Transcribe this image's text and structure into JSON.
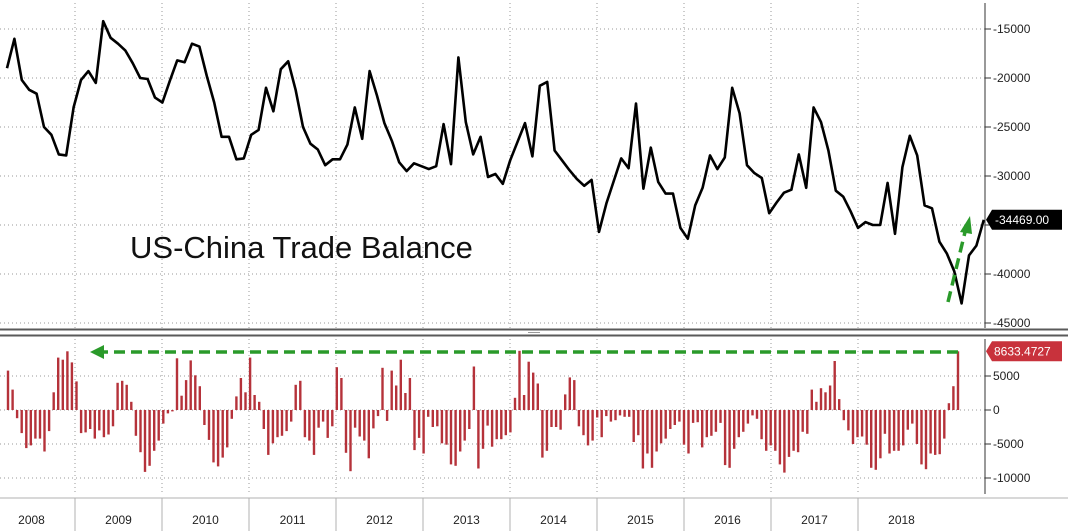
{
  "chart_data": [
    {
      "type": "line",
      "title": "US-China Trade Balance",
      "ylim": [
        -45000,
        -10000
      ],
      "yticks": [
        -15000,
        -20000,
        -25000,
        -30000,
        -35000,
        -40000,
        -45000
      ],
      "ytick_labels": [
        "-15000",
        "-20000",
        "-25000",
        "-30000",
        "-35000",
        "-40000",
        "-45000"
      ],
      "grid": true,
      "x_start": "2008-01",
      "x_end": "2018-09",
      "series": [
        {
          "values": [
            -19000,
            -16000,
            -20200,
            -21200,
            -21600,
            -25000,
            -25800,
            -27800,
            -27900,
            -23000,
            -20200,
            -19300,
            -20500,
            -14200,
            -15900,
            -16500,
            -17200,
            -18500,
            -20000,
            -20100,
            -22000,
            -22500,
            -20300,
            -18200,
            -18400,
            -16500,
            -16800,
            -19800,
            -22500,
            -26000,
            -26000,
            -28300,
            -28200,
            -25800,
            -25300,
            -21000,
            -23400,
            -19100,
            -18300,
            -21200,
            -25000,
            -26700,
            -27300,
            -28900,
            -28300,
            -28300,
            -26800,
            -23000,
            -26200,
            -19300,
            -21800,
            -24600,
            -26400,
            -28600,
            -29500,
            -28700,
            -29000,
            -29300,
            -29000,
            -24700,
            -28800,
            -17900,
            -24500,
            -27800,
            -26000,
            -30100,
            -29800,
            -30800,
            -28400,
            -26500,
            -24600,
            -28000,
            -20800,
            -20400,
            -27400,
            -28400,
            -29400,
            -30300,
            -31000,
            -30400,
            -35700,
            -32800,
            -30500,
            -28200,
            -29200,
            -22600,
            -31300,
            -27100,
            -30600,
            -31800,
            -31800,
            -35300,
            -36400,
            -33000,
            -31200,
            -27900,
            -29300,
            -28100,
            -21000,
            -23600,
            -28900,
            -29700,
            -30200,
            -33800,
            -32700,
            -31700,
            -31400,
            -27800,
            -31200,
            -23000,
            -24500,
            -27400,
            -31500,
            -32100,
            -33600,
            -35300,
            -34700,
            -35000,
            -35000,
            -30700,
            -35900,
            -29100,
            -25900,
            -27900,
            -33000,
            -33300,
            -36700,
            -37900,
            -39700,
            -43000,
            -38100,
            -37100,
            -34469
          ]
        }
      ],
      "last_value_label": "-34469.00"
    },
    {
      "type": "bar",
      "ylim": [
        -11000,
        11000
      ],
      "yticks": [
        5000,
        0,
        -5000,
        -10000
      ],
      "ytick_labels": [
        "5000",
        "0",
        "-5000",
        "-10000"
      ],
      "grid": true,
      "series": [
        {
          "values": [
            5800,
            3000,
            -1200,
            -3400,
            -5600,
            -5200,
            -4200,
            -4200,
            -6100,
            -3100,
            2600,
            7700,
            7400,
            8633,
            7000,
            4200,
            -3400,
            -3300,
            -2800,
            -4200,
            -3000,
            -4000,
            -3600,
            -2400,
            4000,
            4300,
            3700,
            1200,
            -3800,
            -6200,
            -9100,
            -8200,
            -6000,
            -4500,
            -2000,
            -500,
            -200,
            7600,
            2100,
            4400,
            7300,
            5100,
            3500,
            -2200,
            -4400,
            -7700,
            -8300,
            -7000,
            -5500,
            -1300,
            2000,
            4700,
            2600,
            7700,
            2200,
            1200,
            -2800,
            -6600,
            -4900,
            -4000,
            -3800,
            -3100,
            -1700,
            3700,
            4300,
            -4000,
            -4500,
            -6600,
            -2600,
            -1700,
            -4100,
            -2400,
            6300,
            4700,
            -6300,
            -9000,
            -2600,
            -3900,
            -4500,
            -7100,
            -2700,
            -900,
            6200,
            -1600,
            5800,
            3600,
            7400,
            2500,
            4700,
            -5900,
            -4100,
            -6400,
            -1000,
            -2500,
            -2400,
            -4900,
            -5100,
            -8000,
            -8200,
            -6100,
            -4500,
            -2800,
            6400,
            -8600,
            -5700,
            -2300,
            -5400,
            -4300,
            -4300,
            -3700,
            -3300,
            1800,
            8700,
            2200,
            7100,
            5500,
            3900,
            -7000,
            -6000,
            -2500,
            -2500,
            -2900,
            2300,
            4800,
            4400,
            -2400,
            -3700,
            -5200,
            -4500,
            -1100,
            -4000,
            -900,
            -1700,
            -1500,
            -800,
            -1000,
            -1000,
            -4700,
            -3700,
            -8600,
            -6400,
            -8500,
            -6100,
            -4900,
            -4200,
            -2800,
            -2200,
            -1700,
            -5100,
            -6400,
            -1900,
            -1800,
            -5500,
            -4000,
            -3800,
            -3200,
            -1900,
            -8100,
            -8500,
            -5700,
            -4000,
            -3200,
            -2000,
            -800,
            -1300,
            -4300,
            -6000,
            -5200,
            -6000,
            -8000,
            -9200,
            -6900,
            -6000,
            -6200,
            -3200,
            -3500,
            3000,
            1200,
            3200,
            2600,
            3600,
            7200,
            1600,
            -1500,
            -3000,
            -5000,
            -4000,
            -3900,
            -5100,
            -8500,
            -8800,
            -7100,
            -3500,
            -6400,
            -6000,
            -6000,
            -5200,
            -2900,
            -2000,
            -5000,
            -8000,
            -8700,
            -6400,
            -6600,
            -6500,
            -4200,
            1000,
            3500,
            8633
          ]
        }
      ],
      "last_value_label": "8633.4727"
    }
  ],
  "x_axis": {
    "year_labels": [
      "2008",
      "2009",
      "2010",
      "2011",
      "2012",
      "2013",
      "2014",
      "2015",
      "2016",
      "2017",
      "2018"
    ]
  },
  "colors": {
    "line": "#000000",
    "bar": "#b5323a",
    "arrow": "#2a9a2a",
    "grid": "#9a9a9a",
    "divider": "#5a5a5a",
    "top_tag_bg": "#000000",
    "bottom_tag_bg": "#c8323c"
  }
}
